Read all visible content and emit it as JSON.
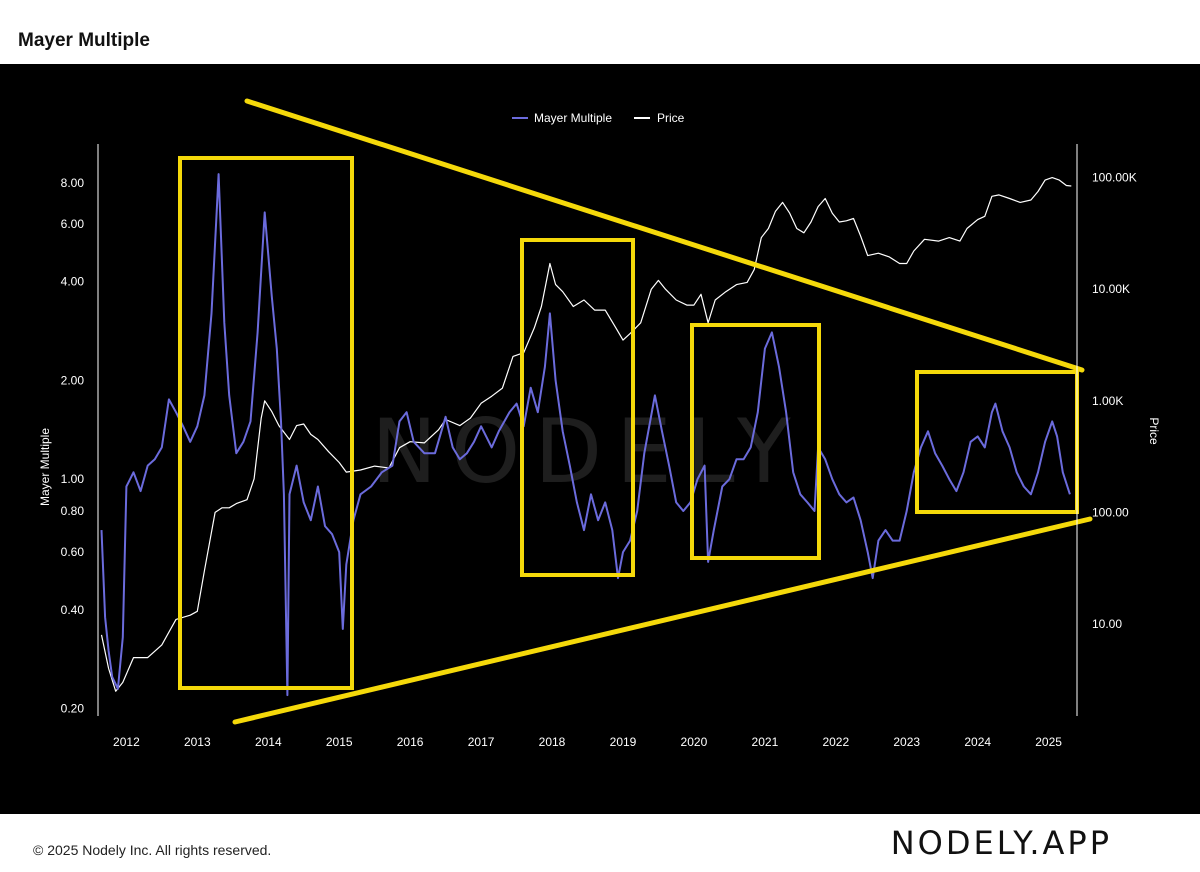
{
  "header": {
    "title": "Mayer Multiple"
  },
  "footer": {
    "copyright": "© 2025 Nodely Inc. All rights reserved.",
    "logo": "NODELY.APP"
  },
  "watermark": "NODELY",
  "colors": {
    "background": "#000000",
    "mayer": "#6b6bdc",
    "price": "#ffffff",
    "annotation": "#f5d90a",
    "axis_text": "#ffffff"
  },
  "chart_data": {
    "type": "line",
    "title": "Mayer Multiple",
    "legend": {
      "placement": "top-center",
      "entries": [
        "Mayer Multiple",
        "Price"
      ]
    },
    "x_axis": {
      "ticks": [
        "2012",
        "2013",
        "2014",
        "2015",
        "2016",
        "2017",
        "2018",
        "2019",
        "2020",
        "2021",
        "2022",
        "2023",
        "2024",
        "2025"
      ],
      "range": [
        2011.6,
        2025.4
      ]
    },
    "y_left": {
      "label": "Mayer Multiple",
      "scale": "log",
      "range": [
        0.19,
        10.5
      ],
      "ticks": [
        8.0,
        6.0,
        4.0,
        2.0,
        1.0,
        0.8,
        0.6,
        0.4,
        0.2
      ],
      "tick_labels": [
        "8.00",
        "6.00",
        "4.00",
        "2.00",
        "1.00",
        "0.80",
        "0.60",
        "0.40",
        "0.20"
      ]
    },
    "y_right": {
      "label": "Price",
      "scale": "log",
      "range": [
        1.5,
        200000
      ],
      "ticks": [
        100000,
        10000,
        1000,
        100,
        10
      ],
      "tick_labels": [
        "100.00K",
        "10.00K",
        "1.00K",
        "100.00",
        "10.00"
      ]
    },
    "grid": false,
    "series": [
      {
        "name": "Mayer Multiple",
        "axis": "left",
        "points": [
          [
            2011.65,
            0.7
          ],
          [
            2011.7,
            0.38
          ],
          [
            2011.75,
            0.3
          ],
          [
            2011.8,
            0.25
          ],
          [
            2011.88,
            0.23
          ],
          [
            2011.95,
            0.33
          ],
          [
            2012.0,
            0.95
          ],
          [
            2012.1,
            1.05
          ],
          [
            2012.2,
            0.92
          ],
          [
            2012.3,
            1.1
          ],
          [
            2012.4,
            1.15
          ],
          [
            2012.5,
            1.25
          ],
          [
            2012.6,
            1.75
          ],
          [
            2012.7,
            1.6
          ],
          [
            2012.8,
            1.45
          ],
          [
            2012.9,
            1.3
          ],
          [
            2013.0,
            1.45
          ],
          [
            2013.1,
            1.8
          ],
          [
            2013.2,
            3.2
          ],
          [
            2013.3,
            8.5
          ],
          [
            2013.38,
            3.0
          ],
          [
            2013.45,
            1.8
          ],
          [
            2013.55,
            1.2
          ],
          [
            2013.65,
            1.3
          ],
          [
            2013.75,
            1.5
          ],
          [
            2013.85,
            2.8
          ],
          [
            2013.95,
            6.5
          ],
          [
            2014.05,
            3.6
          ],
          [
            2014.12,
            2.5
          ],
          [
            2014.18,
            1.5
          ],
          [
            2014.22,
            0.9
          ],
          [
            2014.27,
            0.22
          ],
          [
            2014.3,
            0.9
          ],
          [
            2014.4,
            1.1
          ],
          [
            2014.5,
            0.85
          ],
          [
            2014.6,
            0.75
          ],
          [
            2014.7,
            0.95
          ],
          [
            2014.8,
            0.72
          ],
          [
            2014.9,
            0.68
          ],
          [
            2015.0,
            0.6
          ],
          [
            2015.05,
            0.35
          ],
          [
            2015.1,
            0.55
          ],
          [
            2015.2,
            0.75
          ],
          [
            2015.3,
            0.9
          ],
          [
            2015.45,
            0.95
          ],
          [
            2015.6,
            1.05
          ],
          [
            2015.75,
            1.1
          ],
          [
            2015.85,
            1.5
          ],
          [
            2015.95,
            1.6
          ],
          [
            2016.05,
            1.3
          ],
          [
            2016.2,
            1.2
          ],
          [
            2016.35,
            1.2
          ],
          [
            2016.5,
            1.55
          ],
          [
            2016.6,
            1.25
          ],
          [
            2016.7,
            1.15
          ],
          [
            2016.8,
            1.2
          ],
          [
            2016.9,
            1.3
          ],
          [
            2017.0,
            1.45
          ],
          [
            2017.15,
            1.25
          ],
          [
            2017.25,
            1.4
          ],
          [
            2017.4,
            1.6
          ],
          [
            2017.5,
            1.7
          ],
          [
            2017.6,
            1.45
          ],
          [
            2017.7,
            1.9
          ],
          [
            2017.8,
            1.6
          ],
          [
            2017.9,
            2.2
          ],
          [
            2017.97,
            3.2
          ],
          [
            2018.05,
            2.0
          ],
          [
            2018.15,
            1.4
          ],
          [
            2018.25,
            1.1
          ],
          [
            2018.35,
            0.85
          ],
          [
            2018.45,
            0.7
          ],
          [
            2018.55,
            0.9
          ],
          [
            2018.65,
            0.75
          ],
          [
            2018.75,
            0.85
          ],
          [
            2018.85,
            0.7
          ],
          [
            2018.93,
            0.5
          ],
          [
            2019.0,
            0.6
          ],
          [
            2019.1,
            0.65
          ],
          [
            2019.2,
            0.8
          ],
          [
            2019.3,
            1.2
          ],
          [
            2019.45,
            1.8
          ],
          [
            2019.55,
            1.4
          ],
          [
            2019.65,
            1.1
          ],
          [
            2019.75,
            0.85
          ],
          [
            2019.85,
            0.8
          ],
          [
            2019.95,
            0.85
          ],
          [
            2020.05,
            1.0
          ],
          [
            2020.15,
            1.1
          ],
          [
            2020.2,
            0.56
          ],
          [
            2020.28,
            0.7
          ],
          [
            2020.4,
            0.95
          ],
          [
            2020.5,
            1.0
          ],
          [
            2020.6,
            1.15
          ],
          [
            2020.7,
            1.15
          ],
          [
            2020.8,
            1.25
          ],
          [
            2020.9,
            1.6
          ],
          [
            2021.0,
            2.5
          ],
          [
            2021.1,
            2.8
          ],
          [
            2021.2,
            2.2
          ],
          [
            2021.3,
            1.6
          ],
          [
            2021.4,
            1.05
          ],
          [
            2021.5,
            0.9
          ],
          [
            2021.6,
            0.85
          ],
          [
            2021.7,
            0.8
          ],
          [
            2021.75,
            1.25
          ],
          [
            2021.85,
            1.15
          ],
          [
            2021.95,
            1.0
          ],
          [
            2022.05,
            0.9
          ],
          [
            2022.15,
            0.85
          ],
          [
            2022.25,
            0.88
          ],
          [
            2022.35,
            0.75
          ],
          [
            2022.45,
            0.6
          ],
          [
            2022.52,
            0.5
          ],
          [
            2022.6,
            0.65
          ],
          [
            2022.7,
            0.7
          ],
          [
            2022.8,
            0.65
          ],
          [
            2022.9,
            0.65
          ],
          [
            2023.0,
            0.8
          ],
          [
            2023.1,
            1.05
          ],
          [
            2023.2,
            1.25
          ],
          [
            2023.3,
            1.4
          ],
          [
            2023.4,
            1.2
          ],
          [
            2023.5,
            1.1
          ],
          [
            2023.6,
            1.0
          ],
          [
            2023.7,
            0.92
          ],
          [
            2023.8,
            1.05
          ],
          [
            2023.9,
            1.3
          ],
          [
            2024.0,
            1.35
          ],
          [
            2024.1,
            1.25
          ],
          [
            2024.2,
            1.6
          ],
          [
            2024.25,
            1.7
          ],
          [
            2024.35,
            1.4
          ],
          [
            2024.45,
            1.25
          ],
          [
            2024.55,
            1.05
          ],
          [
            2024.65,
            0.95
          ],
          [
            2024.75,
            0.9
          ],
          [
            2024.85,
            1.05
          ],
          [
            2024.95,
            1.3
          ],
          [
            2025.05,
            1.5
          ],
          [
            2025.12,
            1.35
          ],
          [
            2025.2,
            1.05
          ],
          [
            2025.3,
            0.9
          ]
        ]
      },
      {
        "name": "Price",
        "axis": "right",
        "points": [
          [
            2011.65,
            8
          ],
          [
            2011.75,
            4
          ],
          [
            2011.85,
            2.5
          ],
          [
            2011.95,
            3
          ],
          [
            2012.1,
            5
          ],
          [
            2012.3,
            5
          ],
          [
            2012.5,
            6.5
          ],
          [
            2012.7,
            11
          ],
          [
            2012.9,
            12
          ],
          [
            2013.0,
            13
          ],
          [
            2013.1,
            30
          ],
          [
            2013.25,
            100
          ],
          [
            2013.35,
            110
          ],
          [
            2013.45,
            110
          ],
          [
            2013.55,
            120
          ],
          [
            2013.7,
            130
          ],
          [
            2013.8,
            200
          ],
          [
            2013.9,
            700
          ],
          [
            2013.95,
            1000
          ],
          [
            2014.05,
            800
          ],
          [
            2014.15,
            600
          ],
          [
            2014.3,
            450
          ],
          [
            2014.4,
            600
          ],
          [
            2014.5,
            620
          ],
          [
            2014.6,
            500
          ],
          [
            2014.7,
            450
          ],
          [
            2014.85,
            350
          ],
          [
            2015.0,
            280
          ],
          [
            2015.1,
            230
          ],
          [
            2015.3,
            240
          ],
          [
            2015.5,
            260
          ],
          [
            2015.7,
            250
          ],
          [
            2015.85,
            380
          ],
          [
            2016.0,
            430
          ],
          [
            2016.2,
            420
          ],
          [
            2016.4,
            550
          ],
          [
            2016.5,
            680
          ],
          [
            2016.7,
            600
          ],
          [
            2016.85,
            700
          ],
          [
            2017.0,
            950
          ],
          [
            2017.15,
            1100
          ],
          [
            2017.3,
            1300
          ],
          [
            2017.45,
            2500
          ],
          [
            2017.6,
            2700
          ],
          [
            2017.75,
            4500
          ],
          [
            2017.85,
            7000
          ],
          [
            2017.97,
            17000
          ],
          [
            2018.05,
            11000
          ],
          [
            2018.15,
            9500
          ],
          [
            2018.3,
            7000
          ],
          [
            2018.45,
            8000
          ],
          [
            2018.6,
            6500
          ],
          [
            2018.75,
            6500
          ],
          [
            2018.9,
            4500
          ],
          [
            2019.0,
            3500
          ],
          [
            2019.1,
            4000
          ],
          [
            2019.25,
            5000
          ],
          [
            2019.4,
            10000
          ],
          [
            2019.5,
            12000
          ],
          [
            2019.6,
            10000
          ],
          [
            2019.75,
            8000
          ],
          [
            2019.9,
            7200
          ],
          [
            2020.0,
            7200
          ],
          [
            2020.1,
            9000
          ],
          [
            2020.2,
            5000
          ],
          [
            2020.3,
            8000
          ],
          [
            2020.45,
            9500
          ],
          [
            2020.6,
            11000
          ],
          [
            2020.75,
            11500
          ],
          [
            2020.85,
            15000
          ],
          [
            2020.95,
            29000
          ],
          [
            2021.05,
            35000
          ],
          [
            2021.15,
            50000
          ],
          [
            2021.25,
            60000
          ],
          [
            2021.35,
            48000
          ],
          [
            2021.45,
            35000
          ],
          [
            2021.55,
            32000
          ],
          [
            2021.65,
            40000
          ],
          [
            2021.75,
            55000
          ],
          [
            2021.85,
            65000
          ],
          [
            2021.95,
            48000
          ],
          [
            2022.05,
            40000
          ],
          [
            2022.15,
            41000
          ],
          [
            2022.25,
            43000
          ],
          [
            2022.35,
            30000
          ],
          [
            2022.45,
            20000
          ],
          [
            2022.6,
            21000
          ],
          [
            2022.75,
            19500
          ],
          [
            2022.9,
            17000
          ],
          [
            2023.0,
            17000
          ],
          [
            2023.1,
            22000
          ],
          [
            2023.25,
            28000
          ],
          [
            2023.45,
            27000
          ],
          [
            2023.6,
            29000
          ],
          [
            2023.75,
            27000
          ],
          [
            2023.85,
            35000
          ],
          [
            2024.0,
            42000
          ],
          [
            2024.1,
            45000
          ],
          [
            2024.2,
            68000
          ],
          [
            2024.3,
            70000
          ],
          [
            2024.45,
            65000
          ],
          [
            2024.6,
            60000
          ],
          [
            2024.75,
            63000
          ],
          [
            2024.85,
            75000
          ],
          [
            2024.95,
            95000
          ],
          [
            2025.05,
            100000
          ],
          [
            2025.15,
            95000
          ],
          [
            2025.25,
            85000
          ],
          [
            2025.32,
            84000
          ]
        ]
      }
    ]
  }
}
